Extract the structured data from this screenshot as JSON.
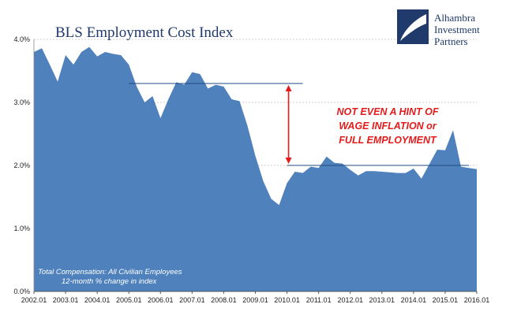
{
  "chart_data": {
    "type": "area",
    "title": "BLS Employment Cost Index",
    "note_line1": "Total Compensation: All Civilian Employees",
    "note_line2": "12-month % change in index",
    "annotation": [
      "NOT EVEN A HINT OF",
      "WAGE INFLATION or",
      "FULL EMPLOYMENT"
    ],
    "logo": [
      "Alhambra",
      "Investment",
      "Partners"
    ],
    "ylim": [
      0,
      4.0
    ],
    "y_ticks": [
      {
        "value": 0,
        "label": "0.0%"
      },
      {
        "value": 1,
        "label": "1.0%"
      },
      {
        "value": 2,
        "label": "2.0%"
      },
      {
        "value": 3,
        "label": "3.0%"
      },
      {
        "value": 4,
        "label": "4.0%"
      }
    ],
    "x_ticks": [
      "2002.01",
      "2003.01",
      "2004.01",
      "2005.01",
      "2006.01",
      "2007.01",
      "2008.01",
      "2009.01",
      "2010.01",
      "2011.01",
      "2012.01",
      "2013.01",
      "2014.01",
      "2015.01",
      "2016.01"
    ],
    "x_start": "2002.01",
    "x_end": "2016.01",
    "x": [
      "2002.01",
      "2002.04",
      "2002.07",
      "2002.10",
      "2003.01",
      "2003.04",
      "2003.07",
      "2003.10",
      "2004.01",
      "2004.04",
      "2004.07",
      "2004.10",
      "2005.01",
      "2005.04",
      "2005.07",
      "2005.10",
      "2006.01",
      "2006.04",
      "2006.07",
      "2006.10",
      "2007.01",
      "2007.04",
      "2007.07",
      "2007.10",
      "2008.01",
      "2008.04",
      "2008.07",
      "2008.10",
      "2009.01",
      "2009.04",
      "2009.07",
      "2009.10",
      "2010.01",
      "2010.04",
      "2010.07",
      "2010.10",
      "2011.01",
      "2011.04",
      "2011.07",
      "2011.10",
      "2012.01",
      "2012.04",
      "2012.07",
      "2012.10",
      "2013.01",
      "2013.04",
      "2013.07",
      "2013.10",
      "2014.01",
      "2014.04",
      "2014.07",
      "2014.10",
      "2015.01",
      "2015.04",
      "2015.07",
      "2015.10",
      "2016.01"
    ],
    "series": [
      {
        "values": [
          3.8,
          3.86,
          3.6,
          3.33,
          3.75,
          3.6,
          3.8,
          3.88,
          3.73,
          3.8,
          3.77,
          3.75,
          3.6,
          3.25,
          3.0,
          3.1,
          2.75,
          3.05,
          3.32,
          3.28,
          3.48,
          3.45,
          3.22,
          3.28,
          3.25,
          3.05,
          3.02,
          2.63,
          2.15,
          1.75,
          1.47,
          1.37,
          1.72,
          1.9,
          1.88,
          1.98,
          1.96,
          2.14,
          2.04,
          2.03,
          1.93,
          1.84,
          1.91,
          1.91,
          1.9,
          1.89,
          1.88,
          1.88,
          1.95,
          1.79,
          2.02,
          2.25,
          2.24,
          2.56,
          1.98,
          1.96,
          1.94
        ]
      }
    ],
    "reference_lines": [
      {
        "value": 3.3,
        "from": "2005.01",
        "to": "2010.07"
      },
      {
        "value": 2.0,
        "from": "2010.01",
        "to": "2015.10"
      }
    ],
    "arrow": {
      "x": "2010.01",
      "from": 3.3,
      "to": 2.0
    },
    "colors": {
      "area": "#4f81bd",
      "title": "#1f3a6b",
      "grid": "#bfbfbf",
      "reference_line": "#1f497d",
      "annotation": "#e31b1b"
    }
  }
}
